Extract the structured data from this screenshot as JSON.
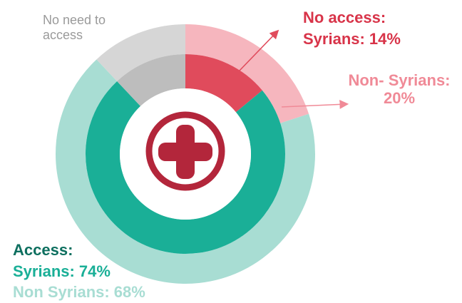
{
  "chart_data": {
    "type": "donut",
    "title": "",
    "categories": [
      "No access",
      "Access",
      "No need to access"
    ],
    "series": [
      {
        "name": "Syrians",
        "ring": "inner",
        "values": [
          14,
          74,
          12
        ]
      },
      {
        "name": "Non Syrians",
        "ring": "outer",
        "values": [
          20,
          68,
          12
        ]
      }
    ],
    "colors": {
      "no_access_syrians": "#e04b5c",
      "no_access_non_syrians": "#f6b6be",
      "access_syrians": "#1aaf97",
      "access_non_syrians": "#a8ddd3",
      "no_need_syrians": "#bdbdbd",
      "no_need_non_syrians": "#d6d6d6",
      "icon": "#b3263b",
      "label_no_access": "#d83449",
      "label_non_syrians_no_access": "#f08a97",
      "label_access_title": "#0d6f5f",
      "label_access_syrians": "#1aaf97",
      "label_access_non_syrians": "#a8ddd3",
      "label_no_need": "#9a9a9a"
    },
    "labels": {
      "no_need_line1": "No need to",
      "no_need_line2": "access",
      "no_access_title": "No access:",
      "no_access_syrians": "Syrians: 14%",
      "no_access_non_syrians_line1": "Non- Syrians:",
      "no_access_non_syrians_line2": "20%",
      "access_title": "Access:",
      "access_syrians": "Syrians: 74%",
      "access_non_syrians": "Non Syrians: 68%"
    },
    "center_icon": "medical-cross-icon"
  }
}
